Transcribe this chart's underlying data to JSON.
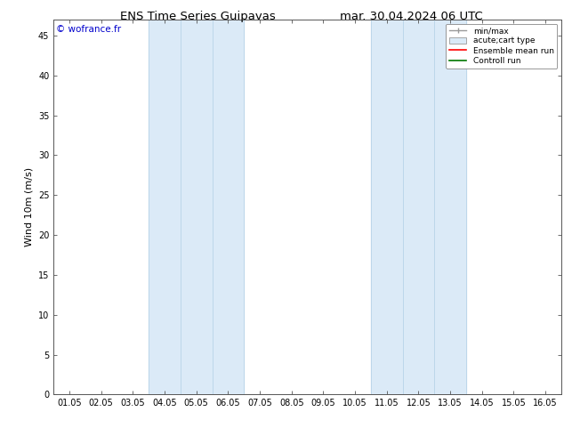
{
  "title_left": "ENS Time Series Guipavas",
  "title_right": "mar. 30.04.2024 06 UTC",
  "ylabel": "Wind 10m (m/s)",
  "watermark": "© wofrance.fr",
  "watermark_color": "#0000cc",
  "ylim": [
    0,
    47
  ],
  "yticks": [
    0,
    5,
    10,
    15,
    20,
    25,
    30,
    35,
    40,
    45
  ],
  "x_labels": [
    "01.05",
    "02.05",
    "03.05",
    "04.05",
    "05.05",
    "06.05",
    "07.05",
    "08.05",
    "09.05",
    "10.05",
    "11.05",
    "12.05",
    "13.05",
    "14.05",
    "15.05",
    "16.05"
  ],
  "shade_bands": [
    {
      "xstart": 3,
      "xend": 5,
      "inner_lines": [
        3,
        4,
        5
      ]
    },
    {
      "xstart": 10,
      "xend": 12,
      "inner_lines": [
        10,
        11,
        12
      ]
    }
  ],
  "shade_color": "#dbeaf7",
  "band_edge_color": "#b8d4e8",
  "background_color": "#ffffff",
  "legend_entries": [
    {
      "label": "min/max",
      "color": "#999999",
      "style": "line_with_caps"
    },
    {
      "label": "acute;cart type",
      "color": "#daeaf7",
      "style": "box"
    },
    {
      "label": "Ensemble mean run",
      "color": "#ff0000",
      "style": "line"
    },
    {
      "label": "Controll run",
      "color": "#007700",
      "style": "line"
    }
  ],
  "title_fontsize": 9.5,
  "tick_fontsize": 7,
  "watermark_fontsize": 7.5,
  "ylabel_fontsize": 8
}
